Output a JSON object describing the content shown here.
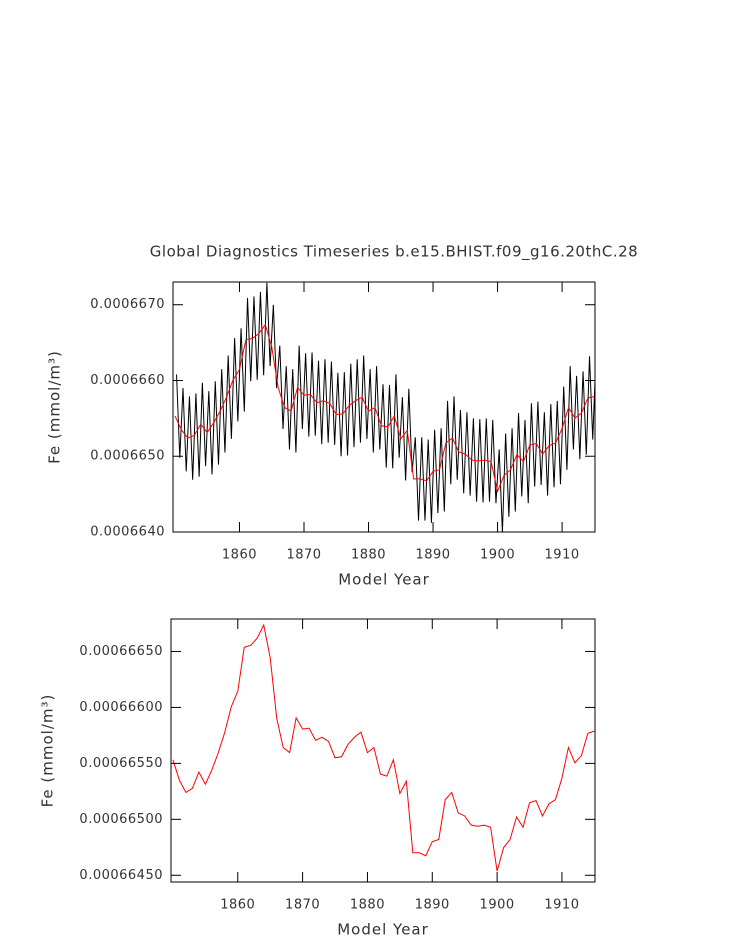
{
  "chart_data": [
    {
      "type": "line",
      "title": "Global Diagnostics Timeseries b.e15.BHIST.f09_g16.20thC.28",
      "xlabel": "Model Year",
      "ylabel": "Fe (mmol/m³)",
      "xlim": [
        1849.7,
        1915.1
      ],
      "ylim": [
        0.000664,
        0.0006673
      ],
      "xticks": [
        1860,
        1870,
        1880,
        1890,
        1900,
        1910
      ],
      "yticks": [
        {
          "value": 0.000664,
          "label": "0.0006640"
        },
        {
          "value": 0.000665,
          "label": "0.0006650"
        },
        {
          "value": 0.000666,
          "label": "0.0006660"
        },
        {
          "value": 0.000667,
          "label": "0.0006670"
        }
      ],
      "series": [
        {
          "color": "#000000",
          "x": [
            1850.25,
            1850.75,
            1851.25,
            1851.75,
            1852.25,
            1852.75,
            1853.25,
            1853.75,
            1854.25,
            1854.75,
            1855.25,
            1855.75,
            1856.25,
            1856.75,
            1857.25,
            1857.75,
            1858.25,
            1858.75,
            1859.25,
            1859.75,
            1860.25,
            1860.75,
            1861.25,
            1861.75,
            1862.25,
            1862.75,
            1863.25,
            1863.75,
            1864.25,
            1864.75,
            1865.25,
            1865.75,
            1866.25,
            1866.75,
            1867.25,
            1867.75,
            1868.25,
            1868.75,
            1869.25,
            1869.75,
            1870.25,
            1870.75,
            1871.25,
            1871.75,
            1872.25,
            1872.75,
            1873.25,
            1873.75,
            1874.25,
            1874.75,
            1875.25,
            1875.75,
            1876.25,
            1876.75,
            1877.25,
            1877.75,
            1878.25,
            1878.75,
            1879.25,
            1879.75,
            1880.25,
            1880.75,
            1881.25,
            1881.75,
            1882.25,
            1882.75,
            1883.25,
            1883.75,
            1884.25,
            1884.75,
            1885.25,
            1885.75,
            1886.25,
            1886.75,
            1887.25,
            1887.75,
            1888.25,
            1888.75,
            1889.25,
            1889.75,
            1890.25,
            1890.75,
            1891.25,
            1891.75,
            1892.25,
            1892.75,
            1893.25,
            1893.75,
            1894.25,
            1894.75,
            1895.25,
            1895.75,
            1896.25,
            1896.75,
            1897.25,
            1897.75,
            1898.25,
            1898.75,
            1899.25,
            1899.75,
            1900.25,
            1900.75,
            1901.25,
            1901.75,
            1902.25,
            1902.75,
            1903.25,
            1903.75,
            1904.25,
            1904.75,
            1905.25,
            1905.75,
            1906.25,
            1906.75,
            1907.25,
            1907.75,
            1908.25,
            1908.75,
            1909.25,
            1909.75,
            1910.25,
            1910.75,
            1911.25,
            1911.75,
            1912.25,
            1912.75,
            1913.25,
            1913.75,
            1914.25,
            1914.75,
            1915.25,
            1915.75
          ],
          "values": [
            0.00066608,
            0.00066498,
            0.0006659,
            0.0006648,
            0.00066579,
            0.00066469,
            0.00066583,
            0.00066473,
            0.00066597,
            0.00066487,
            0.00066586,
            0.00066476,
            0.00066599,
            0.00066489,
            0.00066615,
            0.00066505,
            0.00066633,
            0.00066523,
            0.00066656,
            0.00066546,
            0.00066669,
            0.00066559,
            0.00066709,
            0.00066599,
            0.00066711,
            0.00066601,
            0.00066717,
            0.00066607,
            0.00066729,
            0.00066619,
            0.000667,
            0.0006659,
            0.00066646,
            0.00066536,
            0.00066619,
            0.00066509,
            0.00066615,
            0.00066505,
            0.00066646,
            0.00066536,
            0.00066636,
            0.00066526,
            0.00066637,
            0.00066527,
            0.00066626,
            0.00066516,
            0.00066628,
            0.00066518,
            0.00066625,
            0.00066515,
            0.0006661,
            0.000665,
            0.00066611,
            0.00066501,
            0.00066622,
            0.00066512,
            0.00066628,
            0.00066518,
            0.00066633,
            0.00066523,
            0.00066615,
            0.00066505,
            0.00066619,
            0.00066509,
            0.00066595,
            0.00066485,
            0.00066594,
            0.00066484,
            0.00066608,
            0.00066498,
            0.00066578,
            0.00066468,
            0.00066589,
            0.00066479,
            0.00066525,
            0.00066415,
            0.00066525,
            0.00066415,
            0.00066522,
            0.00066412,
            0.00066535,
            0.00066425,
            0.00066537,
            0.00066427,
            0.00066573,
            0.00066463,
            0.00066579,
            0.00066469,
            0.00066561,
            0.00066451,
            0.00066558,
            0.00066448,
            0.0006655,
            0.0006644,
            0.00066549,
            0.00066439,
            0.0006655,
            0.0006644,
            0.00066548,
            0.00066438,
            0.00066509,
            0.00066399,
            0.0006653,
            0.0006642,
            0.00066537,
            0.00066427,
            0.00066557,
            0.00066447,
            0.00066548,
            0.00066438,
            0.0006657,
            0.0006646,
            0.00066572,
            0.00066462,
            0.00066558,
            0.00066448,
            0.00066569,
            0.00066459,
            0.00066573,
            0.00066463,
            0.00066592,
            0.00066482,
            0.00066619,
            0.00066509,
            0.00066606,
            0.00066496,
            0.00066612,
            0.00066502,
            0.00066632,
            0.00066522,
            0.00066634,
            0.00066524
          ]
        },
        {
          "color": "#ff0000",
          "x": [
            1850,
            1851,
            1852,
            1853,
            1854,
            1855,
            1856,
            1857,
            1858,
            1859,
            1860,
            1861,
            1862,
            1863,
            1864,
            1865,
            1866,
            1867,
            1868,
            1869,
            1870,
            1871,
            1872,
            1873,
            1874,
            1875,
            1876,
            1877,
            1878,
            1879,
            1880,
            1881,
            1882,
            1883,
            1884,
            1885,
            1886,
            1887,
            1888,
            1889,
            1890,
            1891,
            1892,
            1893,
            1894,
            1895,
            1896,
            1897,
            1898,
            1899,
            1900,
            1901,
            1902,
            1903,
            1904,
            1905,
            1906,
            1907,
            1908,
            1909,
            1910,
            1911,
            1912,
            1913,
            1914,
            1915
          ],
          "values": [
            0.000665532,
            0.000665349,
            0.00066524,
            0.000665276,
            0.000665422,
            0.000665313,
            0.000665441,
            0.000665596,
            0.000665779,
            0.000666007,
            0.000666144,
            0.000666537,
            0.000666555,
            0.000666619,
            0.000666737,
            0.000666445,
            0.000665906,
            0.000665642,
            0.000665596,
            0.000665906,
            0.000665806,
            0.000665815,
            0.000665706,
            0.000665733,
            0.000665696,
            0.00066555,
            0.000665559,
            0.000665669,
            0.000665733,
            0.000665779,
            0.000665596,
            0.000665642,
            0.000665404,
            0.000665386,
            0.000665532,
            0.000665231,
            0.00066534,
            0.000664701,
            0.000664701,
            0.000664674,
            0.000664801,
            0.00066482,
            0.000665176,
            0.00066524,
            0.000665057,
            0.00066503,
            0.000664948,
            0.000664938,
            0.000664948,
            0.000664929,
            0.000664537,
            0.000664747,
            0.00066482,
            0.000665021,
            0.000664929,
            0.000665148,
            0.000665167,
            0.00066503,
            0.000665139,
            0.000665176,
            0.000665368,
            0.000665642,
            0.000665505,
            0.000665569,
            0.000665769,
            0.000665788
          ]
        }
      ]
    },
    {
      "type": "line",
      "xlabel": "Model Year",
      "ylabel": "Fe (mmol/m³)",
      "xlim": [
        1849.7,
        1915.1
      ],
      "ylim": [
        0.00066444,
        0.00066679
      ],
      "xticks": [
        1860,
        1870,
        1880,
        1890,
        1900,
        1910
      ],
      "yticks": [
        {
          "value": 0.0006645,
          "label": "0.00066450"
        },
        {
          "value": 0.000665,
          "label": "0.00066500"
        },
        {
          "value": 0.0006655,
          "label": "0.00066550"
        },
        {
          "value": 0.000666,
          "label": "0.00066600"
        },
        {
          "value": 0.0006665,
          "label": "0.00066650"
        }
      ],
      "series": [
        {
          "color": "#ff0000",
          "x": [
            1850,
            1851,
            1852,
            1853,
            1854,
            1855,
            1856,
            1857,
            1858,
            1859,
            1860,
            1861,
            1862,
            1863,
            1864,
            1865,
            1866,
            1867,
            1868,
            1869,
            1870,
            1871,
            1872,
            1873,
            1874,
            1875,
            1876,
            1877,
            1878,
            1879,
            1880,
            1881,
            1882,
            1883,
            1884,
            1885,
            1886,
            1887,
            1888,
            1889,
            1890,
            1891,
            1892,
            1893,
            1894,
            1895,
            1896,
            1897,
            1898,
            1899,
            1900,
            1901,
            1902,
            1903,
            1904,
            1905,
            1906,
            1907,
            1908,
            1909,
            1910,
            1911,
            1912,
            1913,
            1914,
            1915
          ],
          "values": [
            0.000665532,
            0.000665349,
            0.00066524,
            0.000665276,
            0.000665422,
            0.000665313,
            0.000665441,
            0.000665596,
            0.000665779,
            0.000666007,
            0.000666144,
            0.000666537,
            0.000666555,
            0.000666619,
            0.000666737,
            0.000666445,
            0.000665906,
            0.000665642,
            0.000665596,
            0.000665906,
            0.000665806,
            0.000665815,
            0.000665706,
            0.000665733,
            0.000665696,
            0.00066555,
            0.000665559,
            0.000665669,
            0.000665733,
            0.000665779,
            0.000665596,
            0.000665642,
            0.000665404,
            0.000665386,
            0.000665532,
            0.000665231,
            0.00066534,
            0.000664701,
            0.000664701,
            0.000664674,
            0.000664801,
            0.00066482,
            0.000665176,
            0.00066524,
            0.000665057,
            0.00066503,
            0.000664948,
            0.000664938,
            0.000664948,
            0.000664929,
            0.000664537,
            0.000664747,
            0.00066482,
            0.000665021,
            0.000664929,
            0.000665148,
            0.000665167,
            0.00066503,
            0.000665139,
            0.000665176,
            0.000665368,
            0.000665642,
            0.000665505,
            0.000665569,
            0.000665769,
            0.000665788
          ]
        }
      ]
    }
  ]
}
